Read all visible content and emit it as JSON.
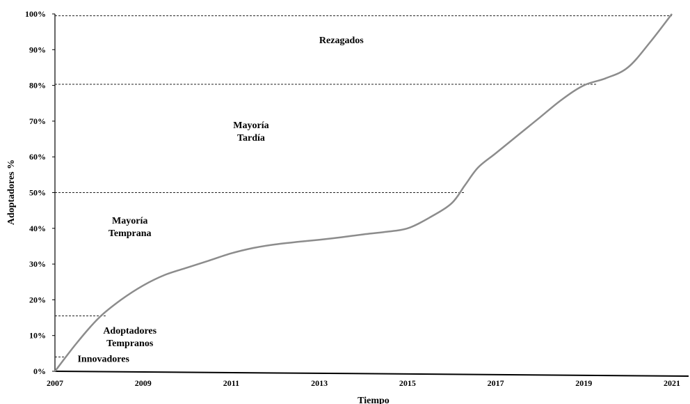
{
  "chart_data": {
    "type": "line",
    "title": "",
    "xlabel": "Tiempo",
    "ylabel": "Adoptadores %",
    "xlim": [
      2007,
      2021
    ],
    "ylim": [
      0,
      100
    ],
    "x_ticks": [
      "2007",
      "2009",
      "2011",
      "2013",
      "2015",
      "2017",
      "2019",
      "2021"
    ],
    "y_ticks": [
      "0%",
      "10%",
      "20%",
      "30%",
      "40%",
      "50%",
      "60%",
      "70%",
      "80%",
      "90%",
      "100%"
    ],
    "grid": false,
    "legend": "none",
    "series": [
      {
        "color": "#8c8c8c",
        "x": [
          2007,
          2007.5,
          2008,
          2008.5,
          2009,
          2009.5,
          2010,
          2010.5,
          2011,
          2011.5,
          2012,
          2012.5,
          2013,
          2013.5,
          2014,
          2014.5,
          2015,
          2015.5,
          2016,
          2016.3,
          2016.6,
          2017,
          2017.5,
          2018,
          2018.5,
          2019,
          2019.5,
          2020,
          2020.5,
          2021
        ],
        "values": [
          0,
          8,
          15,
          20,
          24,
          27,
          29,
          31,
          33,
          34.5,
          35.5,
          36.2,
          36.8,
          37.5,
          38.3,
          39,
          40,
          43,
          47,
          52,
          57,
          61,
          66,
          71,
          76,
          80,
          82,
          85,
          92,
          100
        ]
      }
    ],
    "threshold_lines": [
      {
        "y": 4,
        "x_end": 2007.25
      },
      {
        "y": 15.5,
        "x_end": 2008.15
      },
      {
        "y": 50,
        "x_end": 2016.3
      },
      {
        "y": 80.3,
        "x_end": 2019.3
      },
      {
        "y": 99.5,
        "x_end": 2021
      }
    ],
    "annotations": [
      {
        "lines": [
          "Innovadores"
        ],
        "x": 2008.1,
        "y": 2.6
      },
      {
        "lines": [
          "Adoptadores",
          "Tempranos"
        ],
        "x": 2008.7,
        "y": 10.5
      },
      {
        "lines": [
          "Mayoría",
          "Temprana"
        ],
        "x": 2008.7,
        "y": 41.3
      },
      {
        "lines": [
          "Mayoría",
          "Tardía"
        ],
        "x": 2011.45,
        "y": 68
      },
      {
        "lines": [
          "Rezagados"
        ],
        "x": 2013.5,
        "y": 91.8
      }
    ]
  }
}
